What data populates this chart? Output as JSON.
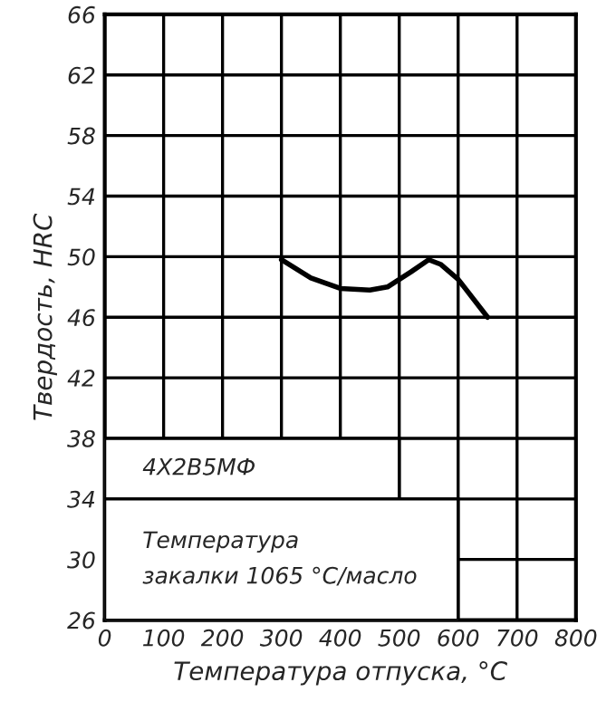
{
  "chart_data": {
    "type": "line",
    "xlabel": "Температура отпуска, °С",
    "ylabel": "Твердость, HRC",
    "x": [
      300,
      350,
      400,
      450,
      480,
      520,
      550,
      570,
      600,
      630,
      650
    ],
    "series": [
      {
        "color": "#000000",
        "values": [
          49.8,
          48.6,
          47.9,
          47.8,
          48.0,
          49.0,
          49.8,
          49.5,
          48.5,
          47.0,
          46.0
        ]
      }
    ],
    "xlim": [
      0,
      800
    ],
    "xticks": [
      0,
      100,
      200,
      300,
      400,
      500,
      600,
      700,
      800
    ],
    "ylim": [
      26,
      66
    ],
    "yticks": [
      26,
      30,
      34,
      38,
      42,
      46,
      50,
      54,
      58,
      62,
      66
    ],
    "grid": true,
    "marker": "none",
    "line_style": "solid",
    "annotations": [
      "4Х2В5МФ",
      "Температура\nзакалки 1065 °С/масло"
    ]
  }
}
